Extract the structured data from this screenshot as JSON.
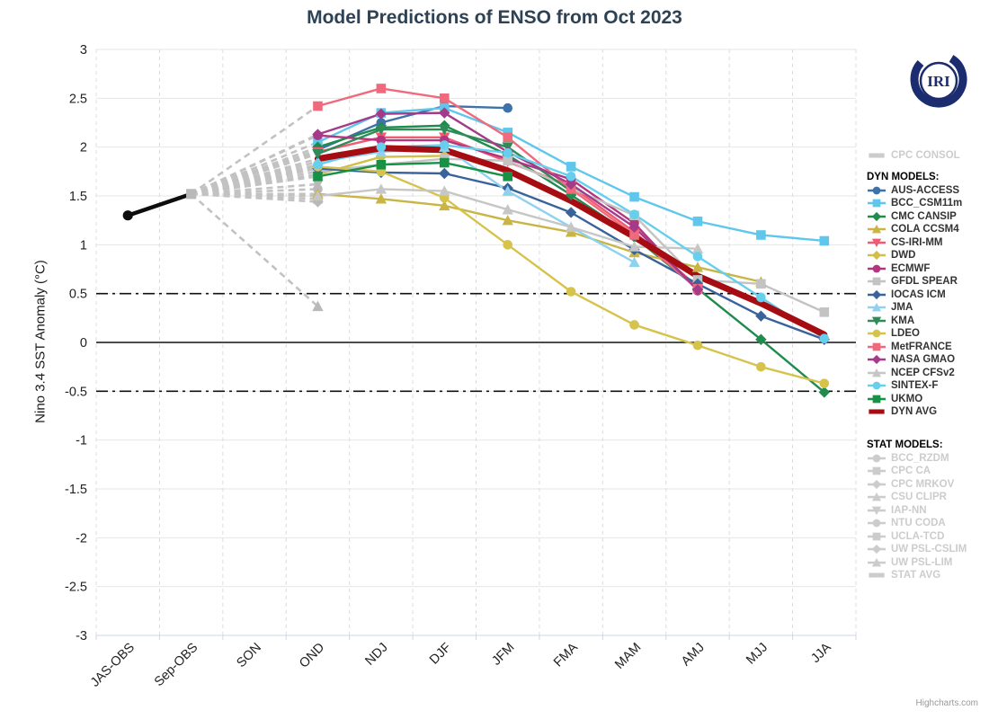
{
  "title": "Model Predictions of ENSO from Oct 2023",
  "logo_text": "IRI",
  "credit": "Highcharts.com",
  "chart_data": {
    "type": "line",
    "title": "Model Predictions of ENSO from Oct 2023",
    "xlabel": "",
    "ylabel": "Nino 3.4 SST Anomaly (°C)",
    "ylim": [
      -3,
      3
    ],
    "yticks": [
      3,
      2.5,
      2,
      1.5,
      1,
      0.5,
      0,
      -0.5,
      -1,
      -1.5,
      -2,
      -2.5,
      -3
    ],
    "categories": [
      "JAS-OBS",
      "Sep-OBS",
      "SON",
      "OND",
      "NDJ",
      "DJF",
      "JFM",
      "FMA",
      "MAM",
      "AMJ",
      "MJJ",
      "JJA"
    ],
    "grid": "on",
    "legend_position": "right",
    "forecast_start_index": 3,
    "reference_lines": [
      {
        "value": 0.5,
        "style": "dashdot",
        "color": "#111111"
      },
      {
        "value": 0,
        "style": "solid",
        "color": "#111111"
      },
      {
        "value": -0.5,
        "style": "dashdot",
        "color": "#111111"
      }
    ],
    "observation": {
      "name": "Observations",
      "color": "#0d0d0d",
      "points": [
        {
          "category": "JAS-OBS",
          "index": 0,
          "value": 1.3,
          "marker": "circle",
          "marker_color": "#0d0d0d"
        },
        {
          "category": "Sep-OBS",
          "index": 1,
          "value": 1.52,
          "marker": "square",
          "marker_color": "#b9b9b9"
        }
      ]
    },
    "fan": {
      "origin_index": 1,
      "origin_value": 1.52,
      "color": "#c2c2c2",
      "dash": "7,5"
    },
    "models": [
      {
        "name": "AUS-ACCESS",
        "slug": "aus-access",
        "marker": "circle",
        "color": "#3f72a8",
        "values": [
          1.97,
          2.25,
          2.42,
          2.4,
          null,
          null,
          null,
          null,
          null
        ]
      },
      {
        "name": "BCC_CSM11m",
        "slug": "bcc-csm11m",
        "marker": "square",
        "color": "#5fc6ec",
        "values": [
          2.05,
          2.35,
          2.4,
          2.15,
          1.8,
          1.49,
          1.24,
          1.1,
          1.04
        ]
      },
      {
        "name": "CMC CANSIP",
        "slug": "cmc-cansip",
        "marker": "diamond",
        "color": "#1f8b4d",
        "values": [
          2.0,
          2.2,
          2.22,
          1.92,
          1.51,
          1.08,
          0.55,
          0.03,
          -0.51
        ]
      },
      {
        "name": "COLA CCSM4",
        "slug": "cola-ccsm4",
        "marker": "triangle",
        "color": "#c9b545",
        "values": [
          1.52,
          1.47,
          1.4,
          1.25,
          1.13,
          0.92,
          0.77,
          0.62,
          null
        ]
      },
      {
        "name": "CS-IRI-MM",
        "slug": "cs-iri-mm",
        "marker": "triangle-down",
        "color": "#ef5b72",
        "values": [
          1.95,
          2.1,
          2.1,
          1.85,
          1.6,
          1.13,
          0.57,
          null,
          null
        ]
      },
      {
        "name": "DWD",
        "slug": "dwd",
        "marker": "diamond",
        "color": "#d2be49",
        "values": [
          1.72,
          1.9,
          1.91,
          null,
          null,
          null,
          null,
          null,
          null
        ]
      },
      {
        "name": "ECMWF",
        "slug": "ecmwf",
        "marker": "circle",
        "color": "#b23580",
        "values": [
          2.12,
          2.07,
          2.07,
          1.88,
          1.67,
          1.22,
          0.53,
          null,
          null
        ]
      },
      {
        "name": "GFDL SPEAR",
        "slug": "gfdl-spear",
        "marker": "square",
        "color": "#c3c3c3",
        "values": [
          1.75,
          1.82,
          1.88,
          1.86,
          1.58,
          1.3,
          0.64,
          0.6,
          0.31
        ]
      },
      {
        "name": "IOCAS ICM",
        "slug": "iocas-icm",
        "marker": "diamond",
        "color": "#3a639c",
        "values": [
          1.78,
          1.74,
          1.73,
          1.58,
          1.33,
          0.95,
          0.6,
          0.27,
          0.03
        ]
      },
      {
        "name": "JMA",
        "slug": "jma",
        "marker": "triangle",
        "color": "#8fd2f0",
        "values": [
          1.85,
          1.95,
          2.0,
          1.55,
          1.18,
          0.82,
          null,
          null,
          null
        ]
      },
      {
        "name": "KMA",
        "slug": "kma",
        "marker": "triangle-down",
        "color": "#2f8b57",
        "values": [
          1.93,
          2.18,
          2.18,
          2.0,
          1.55,
          null,
          null,
          null,
          null
        ]
      },
      {
        "name": "LDEO",
        "slug": "ldeo",
        "marker": "circle",
        "color": "#d6c34b",
        "values": [
          1.8,
          1.75,
          1.48,
          1.0,
          0.52,
          0.18,
          -0.03,
          -0.25,
          -0.42
        ]
      },
      {
        "name": "MetFRANCE",
        "slug": "metfrance",
        "marker": "square",
        "color": "#f06a7d",
        "values": [
          2.42,
          2.6,
          2.5,
          2.1,
          1.57,
          1.1,
          0.55,
          null,
          null
        ]
      },
      {
        "name": "NASA GMAO",
        "slug": "nasa-gmao",
        "marker": "diamond",
        "color": "#a43b8a",
        "values": [
          2.13,
          2.34,
          2.35,
          1.95,
          1.62,
          1.18,
          0.54,
          null,
          null
        ]
      },
      {
        "name": "NCEP CFSv2",
        "slug": "ncep-cfsv2",
        "marker": "triangle",
        "color": "#c6c6c6",
        "values": [
          1.5,
          1.57,
          1.55,
          1.36,
          1.18,
          0.98,
          0.96,
          null,
          null
        ]
      },
      {
        "name": "SINTEX-F",
        "slug": "sintex-f",
        "marker": "circle",
        "color": "#66cfee",
        "values": [
          1.82,
          2.0,
          2.02,
          1.94,
          1.7,
          1.31,
          0.88,
          0.46,
          0.04
        ]
      },
      {
        "name": "UKMO",
        "slug": "ukmo",
        "marker": "square",
        "color": "#179146",
        "values": [
          1.7,
          1.82,
          1.84,
          1.7,
          null,
          null,
          null,
          null,
          null
        ]
      },
      {
        "name": "DYN AVG",
        "slug": "dyn-avg",
        "marker": "none",
        "color": "#a50d12",
        "line_width": 7,
        "values": [
          1.88,
          1.99,
          1.97,
          1.76,
          1.45,
          1.08,
          0.68,
          0.4,
          0.08
        ]
      }
    ],
    "stat_fan": [
      {
        "marker": "triangle-down",
        "end_value": 1.62
      },
      {
        "marker": "circle",
        "end_value": 1.57
      },
      {
        "marker": "triangle",
        "end_value": 1.52
      },
      {
        "marker": "square",
        "end_value": 1.47
      },
      {
        "marker": "diamond",
        "end_value": 1.44
      },
      {
        "marker": "triangle",
        "end_value": 0.37
      }
    ],
    "legend": {
      "cpc_consol": {
        "label": "CPC CONSOL",
        "slug": "cpc-consol",
        "marker": "dash",
        "disabled": true
      },
      "dyn_header": "DYN MODELS:",
      "stat_header": "STAT MODELS:",
      "stat_items": [
        {
          "label": "BCC_RZDM",
          "slug": "bcc-rzdm",
          "marker": "circle",
          "disabled": true
        },
        {
          "label": "CPC CA",
          "slug": "cpc-ca",
          "marker": "square",
          "disabled": true
        },
        {
          "label": "CPC MRKOV",
          "slug": "cpc-mrkov",
          "marker": "diamond",
          "disabled": true
        },
        {
          "label": "CSU CLIPR",
          "slug": "csu-clipr",
          "marker": "triangle",
          "disabled": true
        },
        {
          "label": "IAP-NN",
          "slug": "iap-nn",
          "marker": "triangle-down",
          "disabled": true
        },
        {
          "label": "NTU CODA",
          "slug": "ntu-coda",
          "marker": "circle",
          "disabled": true
        },
        {
          "label": "UCLA-TCD",
          "slug": "ucla-tcd",
          "marker": "square",
          "disabled": true
        },
        {
          "label": "UW PSL-CSLIM",
          "slug": "uw-psl-cslim",
          "marker": "diamond",
          "disabled": true
        },
        {
          "label": "UW PSL-LIM",
          "slug": "uw-psl-lim",
          "marker": "triangle",
          "disabled": true
        },
        {
          "label": "STAT AVG",
          "slug": "stat-avg",
          "marker": "dash",
          "disabled": true
        }
      ],
      "disabled_color": "#cccccc"
    }
  }
}
